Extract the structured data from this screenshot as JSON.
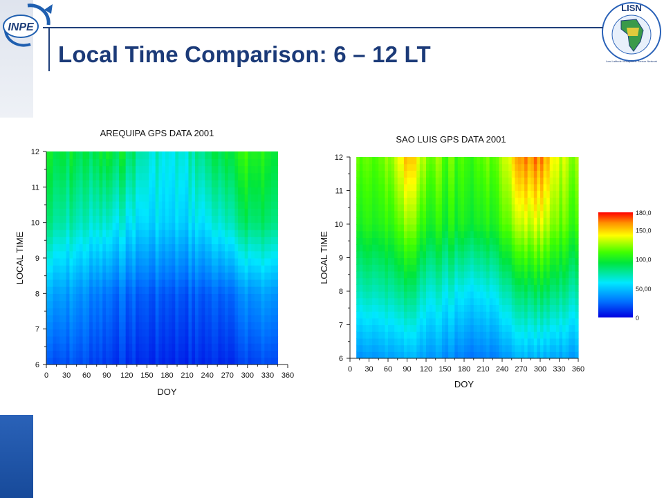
{
  "slide": {
    "title": "Local Time Comparison: 6 – 12 LT",
    "logo_left_text": "INPE",
    "logo_right_text": "LISN",
    "logo_right_ring_text": "Low-Latitude Ionospheric Sensor Network"
  },
  "colors": {
    "title": "#1b3a78",
    "rule": "#1f3f7a",
    "colorscale": [
      "#0000e0",
      "#0070ff",
      "#00e8ff",
      "#00e63c",
      "#40ff00",
      "#ffff00",
      "#ff9000",
      "#ff0000"
    ]
  },
  "chart_data": [
    {
      "type": "heatmap",
      "title": "AREQUIPA GPS DATA 2001",
      "xlabel": "DOY",
      "ylabel": "LOCAL TIME",
      "xlim": [
        0,
        360
      ],
      "ylim": [
        6,
        12
      ],
      "x_ticks": [
        "0",
        "30",
        "60",
        "90",
        "120",
        "150",
        "180",
        "210",
        "240",
        "270",
        "300",
        "330",
        "360"
      ],
      "y_ticks": [
        "6",
        "7",
        "8",
        "9",
        "10",
        "11",
        "12"
      ],
      "data_x_range": [
        0,
        345
      ],
      "z_estimate": {
        "description": "TEC values (0–180 scale); low at 6 LT rising toward 12 LT",
        "doy": [
          0,
          30,
          60,
          90,
          120,
          150,
          180,
          210,
          240,
          270,
          300,
          330,
          345
        ],
        "local_time": [
          6,
          8,
          10,
          12
        ],
        "values": [
          [
            20,
            45,
            85,
            100
          ],
          [
            20,
            40,
            75,
            95
          ],
          [
            18,
            35,
            70,
            90
          ],
          [
            15,
            30,
            70,
            100
          ],
          [
            12,
            25,
            60,
            90
          ],
          [
            10,
            22,
            55,
            70
          ],
          [
            10,
            22,
            55,
            65
          ],
          [
            10,
            22,
            55,
            70
          ],
          [
            10,
            22,
            60,
            85
          ],
          [
            12,
            28,
            75,
            100
          ],
          [
            15,
            35,
            85,
            105
          ],
          [
            18,
            40,
            85,
            100
          ],
          [
            20,
            40,
            85,
            100
          ]
        ]
      }
    },
    {
      "type": "heatmap",
      "title": "SAO LUIS GPS DATA 2001",
      "xlabel": "DOY",
      "ylabel": "LOCAL TIME",
      "xlim": [
        0,
        360
      ],
      "ylim": [
        6,
        12
      ],
      "x_ticks": [
        "0",
        "30",
        "60",
        "90",
        "120",
        "150",
        "180",
        "210",
        "240",
        "270",
        "300",
        "330",
        "360"
      ],
      "y_ticks": [
        "6",
        "7",
        "8",
        "9",
        "10",
        "11",
        "12"
      ],
      "data_x_range": [
        10,
        360
      ],
      "z_estimate": {
        "description": "TEC values (0–180 scale); peaks near DOY 85–95 and 270–310 late morning",
        "doy": [
          10,
          30,
          60,
          90,
          120,
          150,
          180,
          210,
          240,
          270,
          300,
          330,
          360
        ],
        "local_time": [
          6,
          8,
          10,
          12
        ],
        "values": [
          [
            35,
            70,
            100,
            115
          ],
          [
            35,
            70,
            100,
            110
          ],
          [
            40,
            75,
            105,
            120
          ],
          [
            45,
            85,
            125,
            155
          ],
          [
            40,
            70,
            105,
            125
          ],
          [
            35,
            65,
            100,
            115
          ],
          [
            30,
            60,
            100,
            110
          ],
          [
            30,
            60,
            100,
            115
          ],
          [
            35,
            70,
            110,
            125
          ],
          [
            45,
            85,
            130,
            160
          ],
          [
            45,
            90,
            135,
            165
          ],
          [
            40,
            80,
            115,
            130
          ],
          [
            40,
            75,
            110,
            125
          ]
        ]
      }
    }
  ],
  "colorbar": {
    "ticks": [
      "180,0",
      "150,0",
      "100,0",
      "50,00",
      "0"
    ],
    "values": [
      180,
      150,
      100,
      50,
      0
    ],
    "range": [
      0,
      180
    ]
  }
}
